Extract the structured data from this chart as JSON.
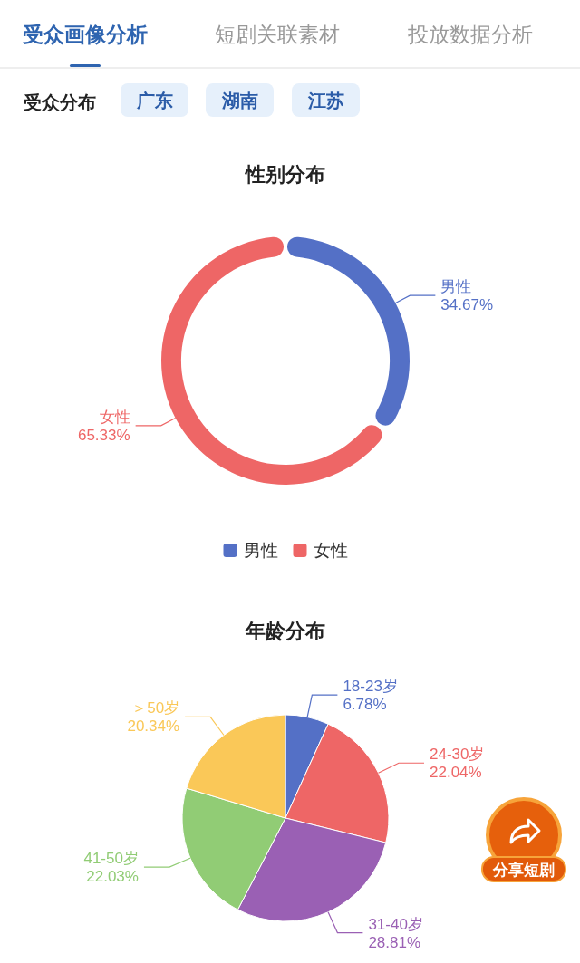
{
  "chart_data": [
    {
      "type": "other",
      "annotations": [
        "受众画像分析",
        "短剧关联素材",
        "投放数据分析",
        "受众分布",
        "广东",
        "湖南",
        "江苏",
        "分享短剧"
      ]
    },
    {
      "type": "donut",
      "title": "性别分布",
      "categories": [
        "男性",
        "女性"
      ],
      "values": [
        34.67,
        65.33
      ],
      "colors": [
        "#5470c6",
        "#ee6666"
      ],
      "value_labels": [
        "34.67%",
        "65.33%"
      ],
      "legend": "bottom"
    },
    {
      "type": "pie",
      "title": "年龄分布",
      "categories": [
        "18-23岁",
        "24-30岁",
        "31-40岁",
        "41-50岁",
        "＞50岁"
      ],
      "values": [
        6.78,
        22.04,
        28.81,
        22.03,
        20.34
      ],
      "colors": [
        "#5470c6",
        "#ee6666",
        "#9a60b4",
        "#91cc75",
        "#fac858"
      ],
      "value_labels": [
        "6.78%",
        "22.04%",
        "28.81%",
        "22.03%",
        "20.34%"
      ]
    }
  ]
}
